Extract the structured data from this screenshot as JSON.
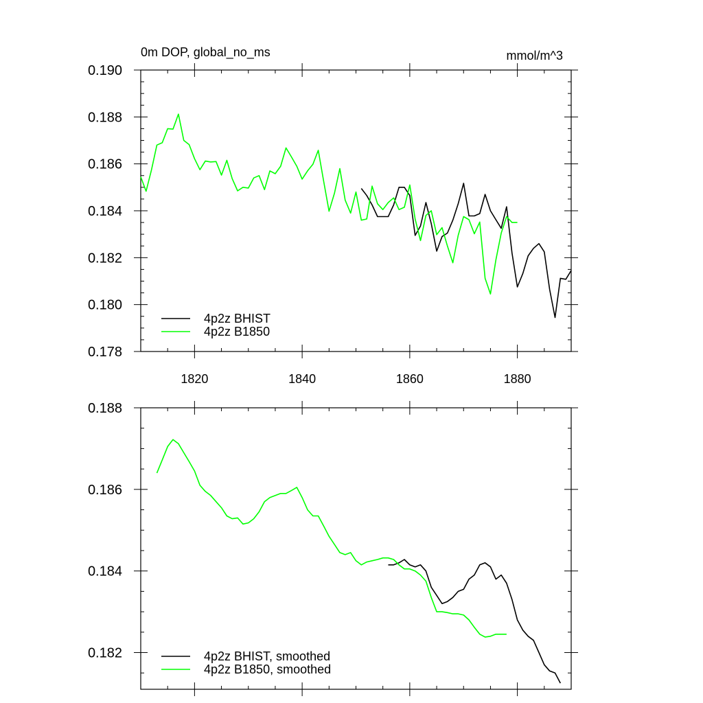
{
  "chart_data": [
    {
      "type": "line",
      "title": "0m DOP, global_no_ms",
      "units": "mmol/m^3",
      "xlabel": "",
      "ylabel": "",
      "xlim": [
        1810,
        1890
      ],
      "ylim": [
        0.178,
        0.19
      ],
      "x_ticks": [
        1820,
        1840,
        1860,
        1880
      ],
      "y_ticks": [
        0.178,
        0.18,
        0.182,
        0.184,
        0.186,
        0.188,
        0.19
      ],
      "y_tick_labels": [
        "0.178",
        "0.180",
        "0.182",
        "0.184",
        "0.186",
        "0.188",
        "0.190"
      ],
      "x_tick_labels": [
        "1820",
        "1840",
        "1860",
        "1880"
      ],
      "legend_position": "bottom-left",
      "series": [
        {
          "name": "4p2z BHIST",
          "color": "#000000",
          "x": [
            1851,
            1852,
            1853,
            1854,
            1855,
            1856,
            1857,
            1858,
            1859,
            1860,
            1861,
            1862,
            1863,
            1864,
            1865,
            1866,
            1867,
            1868,
            1869,
            1870,
            1871,
            1872,
            1873,
            1874,
            1875,
            1876,
            1877,
            1878,
            1879,
            1880,
            1881,
            1882,
            1883,
            1884,
            1885,
            1886,
            1887,
            1888,
            1889,
            1890
          ],
          "y": [
            0.18495,
            0.18465,
            0.18425,
            0.18375,
            0.18375,
            0.18375,
            0.18425,
            0.185,
            0.185,
            0.18465,
            0.18295,
            0.18335,
            0.18435,
            0.18345,
            0.18228,
            0.1829,
            0.18305,
            0.1836,
            0.1843,
            0.18517,
            0.18378,
            0.18378,
            0.18388,
            0.1847,
            0.184,
            0.18362,
            0.18325,
            0.18417,
            0.1822,
            0.18075,
            0.18132,
            0.18208,
            0.1824,
            0.1826,
            0.18225,
            0.18065,
            0.17945,
            0.18112,
            0.18108,
            0.18145
          ]
        },
        {
          "name": "4p2z B1850",
          "color": "#00ff00",
          "x": [
            1810,
            1811,
            1812,
            1813,
            1814,
            1815,
            1816,
            1817,
            1818,
            1819,
            1820,
            1821,
            1822,
            1823,
            1824,
            1825,
            1826,
            1827,
            1828,
            1829,
            1830,
            1831,
            1832,
            1833,
            1834,
            1835,
            1836,
            1837,
            1838,
            1839,
            1840,
            1841,
            1842,
            1843,
            1844,
            1845,
            1846,
            1847,
            1848,
            1849,
            1850,
            1851,
            1852,
            1853,
            1854,
            1855,
            1856,
            1857,
            1858,
            1859,
            1860,
            1861,
            1862,
            1863,
            1864,
            1865,
            1866,
            1867,
            1868,
            1869,
            1870,
            1871,
            1872,
            1873,
            1874,
            1875,
            1876,
            1877,
            1878,
            1879,
            1880
          ],
          "y": [
            0.18545,
            0.18483,
            0.18575,
            0.1868,
            0.1869,
            0.1875,
            0.18748,
            0.18812,
            0.187,
            0.18682,
            0.18622,
            0.18575,
            0.18612,
            0.18608,
            0.1861,
            0.18552,
            0.18615,
            0.18537,
            0.18485,
            0.185,
            0.18497,
            0.1854,
            0.1855,
            0.1849,
            0.1857,
            0.18558,
            0.1859,
            0.18668,
            0.1863,
            0.1859,
            0.18535,
            0.1857,
            0.18598,
            0.18658,
            0.18525,
            0.18398,
            0.18475,
            0.1858,
            0.18445,
            0.1839,
            0.1848,
            0.1836,
            0.18365,
            0.18505,
            0.1843,
            0.18405,
            0.18435,
            0.18455,
            0.18405,
            0.18415,
            0.1851,
            0.18365,
            0.18273,
            0.1838,
            0.184,
            0.18298,
            0.18328,
            0.1825,
            0.18178,
            0.18295,
            0.18375,
            0.18362,
            0.18302,
            0.18352,
            0.18112,
            0.18045,
            0.1819,
            0.18305,
            0.18375,
            0.1835,
            0.1835
          ]
        }
      ]
    },
    {
      "type": "line",
      "title": "",
      "xlabel": "",
      "ylabel": "",
      "xlim": [
        1810,
        1890
      ],
      "ylim": [
        0.1811,
        0.188
      ],
      "x_ticks": [
        1820,
        1840,
        1860,
        1880
      ],
      "y_ticks": [
        0.182,
        0.184,
        0.186,
        0.188
      ],
      "y_tick_labels": [
        "0.182",
        "0.184",
        "0.186",
        "0.188"
      ],
      "legend_position": "bottom-left",
      "series": [
        {
          "name": "4p2z BHIST, smoothed",
          "color": "#000000",
          "x": [
            1856,
            1857,
            1858,
            1859,
            1860,
            1861,
            1862,
            1863,
            1864,
            1865,
            1866,
            1867,
            1868,
            1869,
            1870,
            1871,
            1872,
            1873,
            1874,
            1875,
            1876,
            1877,
            1878,
            1879,
            1880,
            1881,
            1882,
            1883,
            1884,
            1885,
            1886,
            1887,
            1888
          ],
          "y": [
            0.18415,
            0.18415,
            0.1842,
            0.18428,
            0.18415,
            0.1841,
            0.18415,
            0.184,
            0.1836,
            0.1834,
            0.1832,
            0.18325,
            0.18335,
            0.1835,
            0.18355,
            0.1838,
            0.1839,
            0.18415,
            0.1842,
            0.1841,
            0.1838,
            0.1839,
            0.1837,
            0.1833,
            0.1828,
            0.18255,
            0.1824,
            0.1823,
            0.182,
            0.1817,
            0.18155,
            0.1815,
            0.18125
          ]
        },
        {
          "name": "4p2z B1850, smoothed",
          "color": "#00ff00",
          "x": [
            1813,
            1814,
            1815,
            1816,
            1817,
            1818,
            1819,
            1820,
            1821,
            1822,
            1823,
            1824,
            1825,
            1826,
            1827,
            1828,
            1829,
            1830,
            1831,
            1832,
            1833,
            1834,
            1835,
            1836,
            1837,
            1838,
            1839,
            1840,
            1841,
            1842,
            1843,
            1844,
            1845,
            1846,
            1847,
            1848,
            1849,
            1850,
            1851,
            1852,
            1853,
            1854,
            1855,
            1856,
            1857,
            1858,
            1859,
            1860,
            1861,
            1862,
            1863,
            1864,
            1865,
            1866,
            1867,
            1868,
            1869,
            1870,
            1871,
            1872,
            1873,
            1874,
            1875,
            1876,
            1877,
            1878
          ],
          "y": [
            0.1864,
            0.18672,
            0.18705,
            0.18722,
            0.18712,
            0.1869,
            0.18668,
            0.18645,
            0.1861,
            0.18595,
            0.18585,
            0.1857,
            0.18555,
            0.18535,
            0.18528,
            0.1853,
            0.18515,
            0.18518,
            0.18528,
            0.18545,
            0.1857,
            0.1858,
            0.18585,
            0.1859,
            0.1859,
            0.18597,
            0.18605,
            0.1858,
            0.1855,
            0.18535,
            0.18535,
            0.1851,
            0.18485,
            0.18465,
            0.18445,
            0.1844,
            0.18445,
            0.18425,
            0.18415,
            0.18422,
            0.18425,
            0.18428,
            0.18432,
            0.18432,
            0.18428,
            0.18415,
            0.18405,
            0.18405,
            0.184,
            0.1839,
            0.18375,
            0.18335,
            0.183,
            0.183,
            0.18298,
            0.18295,
            0.18295,
            0.18292,
            0.1828,
            0.18262,
            0.18245,
            0.18238,
            0.1824,
            0.18245,
            0.18245,
            0.18245
          ]
        }
      ]
    }
  ]
}
